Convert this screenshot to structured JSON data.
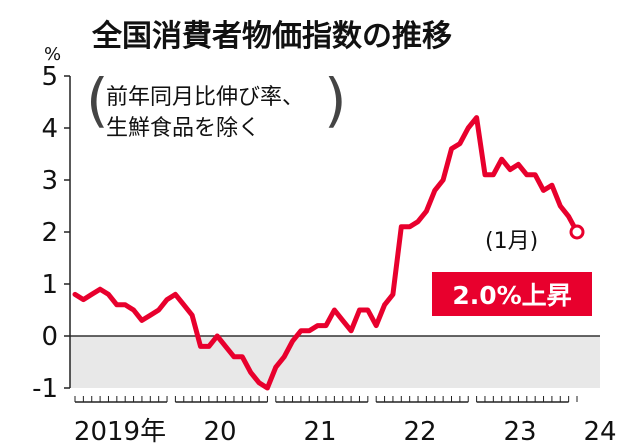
{
  "chart_data": {
    "type": "line",
    "title": "全国消費者物価指数の推移",
    "subtitle_lines": [
      "前年同月比伸び率、",
      "生鮮食品を除く"
    ],
    "y_unit": "%",
    "ylim": [
      -1,
      5
    ],
    "yticks": [
      "5",
      "4",
      "3",
      "2",
      "1",
      "0",
      "-1"
    ],
    "xticks": [
      "2019年",
      "20",
      "21",
      "22",
      "23",
      "24"
    ],
    "x_start": "2019-01",
    "x_end": "2024-01",
    "series": [
      {
        "values": [
          0.8,
          0.7,
          0.8,
          0.9,
          0.8,
          0.6,
          0.6,
          0.5,
          0.3,
          0.4,
          0.5,
          0.7,
          0.8,
          0.6,
          0.4,
          -0.2,
          -0.2,
          0.0,
          -0.2,
          -0.4,
          -0.4,
          -0.7,
          -0.9,
          -1.0,
          -0.6,
          -0.4,
          -0.1,
          0.1,
          0.1,
          0.2,
          0.2,
          0.5,
          0.3,
          0.1,
          0.5,
          0.5,
          0.2,
          0.6,
          0.8,
          2.1,
          2.1,
          2.2,
          2.4,
          2.8,
          3.0,
          3.6,
          3.7,
          4.0,
          4.2,
          3.1,
          3.1,
          3.4,
          3.2,
          3.3,
          3.1,
          3.1,
          2.8,
          2.9,
          2.5,
          2.3,
          2.0
        ],
        "color": "#e8002d"
      }
    ],
    "annotation": {
      "month_label": "(1月)",
      "value_label": "2.0%上昇"
    },
    "shade_below_zero": true,
    "colors": {
      "line": "#e8002d",
      "shade": "#e8e8e8",
      "axis": "#222222"
    }
  }
}
